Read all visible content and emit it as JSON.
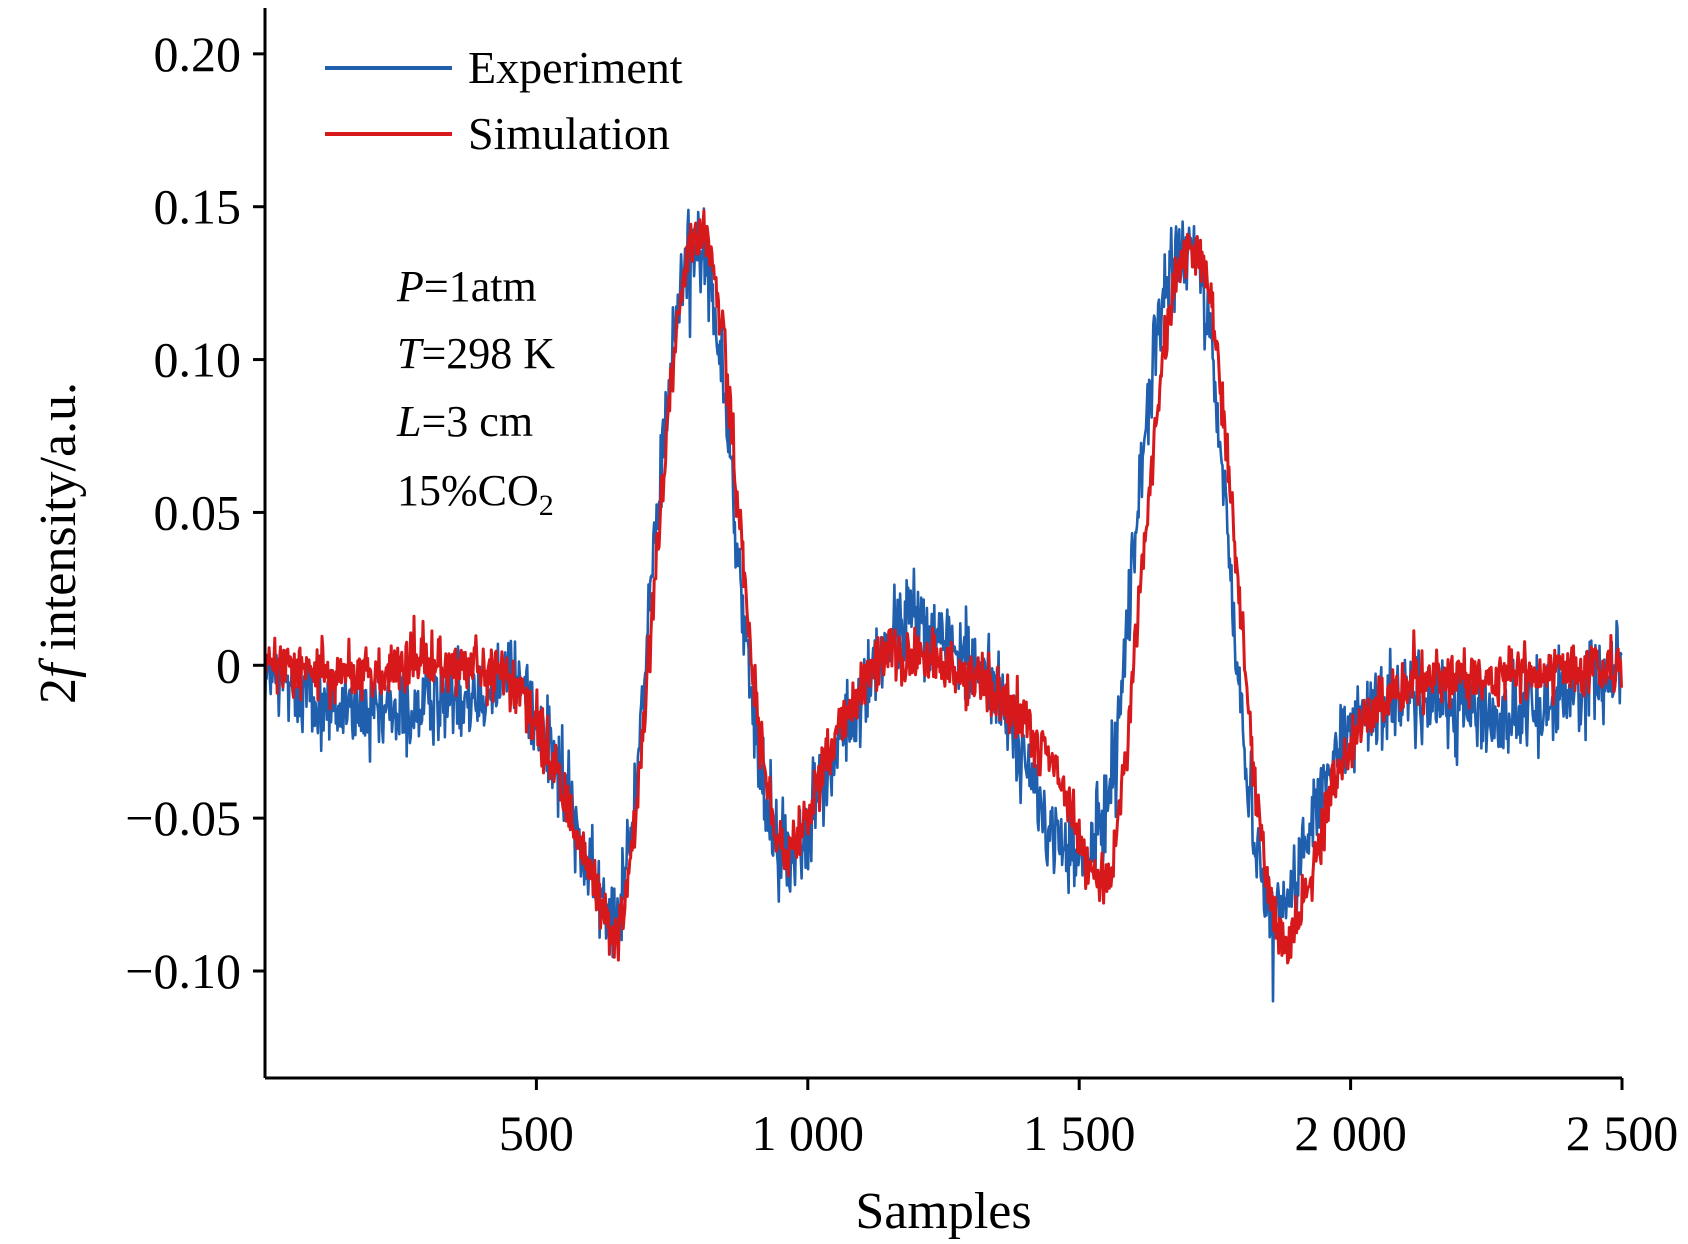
{
  "chart_data": {
    "type": "line",
    "xlabel": "Samples",
    "ylabel_prefix": "2",
    "ylabel_italic": "f",
    "ylabel_rest": " intensity/a.u.",
    "xlim": [
      0,
      2500
    ],
    "ylim": [
      -0.135,
      0.215
    ],
    "xticks": [
      {
        "value": 500,
        "label": "500"
      },
      {
        "value": 1000,
        "label": "1 000"
      },
      {
        "value": 1500,
        "label": "1 500"
      },
      {
        "value": 2000,
        "label": "2 000"
      },
      {
        "value": 2500,
        "label": "2 500"
      }
    ],
    "yticks": [
      {
        "value": 0.2,
        "label": "0.20"
      },
      {
        "value": 0.15,
        "label": "0.15"
      },
      {
        "value": 0.1,
        "label": "0.10"
      },
      {
        "value": 0.05,
        "label": "0.05"
      },
      {
        "value": 0,
        "label": "0"
      },
      {
        "value": -0.05,
        "label": "−0.05"
      },
      {
        "value": -0.1,
        "label": "−0.10"
      }
    ],
    "legend_position": "top-left",
    "annotations": [
      {
        "italic": "P",
        "rest": "=1atm"
      },
      {
        "italic": "T",
        "rest": "=298 K"
      },
      {
        "italic": "L",
        "rest": "=3 cm"
      },
      {
        "italic": "",
        "rest": "15%CO",
        "sub": "2"
      }
    ],
    "series": [
      {
        "name": "Experiment",
        "color": "#1f5fad",
        "noise": 0.011,
        "x": [
          0,
          50,
          100,
          150,
          200,
          250,
          300,
          350,
          400,
          450,
          480,
          500,
          530,
          560,
          580,
          600,
          620,
          640,
          650,
          660,
          680,
          700,
          720,
          740,
          760,
          780,
          790,
          800,
          820,
          840,
          860,
          880,
          900,
          920,
          940,
          960,
          975,
          990,
          1010,
          1040,
          1070,
          1100,
          1130,
          1160,
          1190,
          1220,
          1250,
          1280,
          1310,
          1340,
          1370,
          1400,
          1430,
          1460,
          1490,
          1510,
          1530,
          1545,
          1560,
          1580,
          1600,
          1620,
          1640,
          1660,
          1680,
          1700,
          1720,
          1740,
          1760,
          1780,
          1800,
          1820,
          1840,
          1860,
          1870,
          1880,
          1890,
          1910,
          1940,
          1970,
          2000,
          2030,
          2060,
          2100,
          2150,
          2200,
          2250,
          2300,
          2350,
          2400,
          2450,
          2500
        ],
        "y": [
          -0.003,
          -0.007,
          -0.012,
          -0.014,
          -0.018,
          -0.016,
          -0.012,
          -0.01,
          -0.007,
          -0.003,
          -0.008,
          -0.016,
          -0.03,
          -0.045,
          -0.056,
          -0.07,
          -0.078,
          -0.082,
          -0.08,
          -0.072,
          -0.044,
          -0.002,
          0.042,
          0.083,
          0.118,
          0.138,
          0.14,
          0.137,
          0.125,
          0.1,
          0.06,
          0.018,
          -0.018,
          -0.042,
          -0.057,
          -0.063,
          -0.062,
          -0.056,
          -0.045,
          -0.034,
          -0.022,
          -0.01,
          0.001,
          0.01,
          0.016,
          0.014,
          0.009,
          0.004,
          0.0,
          -0.006,
          -0.018,
          -0.032,
          -0.048,
          -0.058,
          -0.063,
          -0.064,
          -0.058,
          -0.05,
          -0.035,
          -0.005,
          0.037,
          0.075,
          0.105,
          0.123,
          0.133,
          0.136,
          0.13,
          0.108,
          0.072,
          0.028,
          -0.018,
          -0.052,
          -0.072,
          -0.08,
          -0.081,
          -0.079,
          -0.074,
          -0.063,
          -0.046,
          -0.032,
          -0.022,
          -0.015,
          -0.011,
          -0.01,
          -0.011,
          -0.013,
          -0.016,
          -0.017,
          -0.013,
          -0.008,
          -0.004,
          0.0
        ]
      },
      {
        "name": "Simulation",
        "color": "#d7191c",
        "noise": 0.007,
        "x": [
          0,
          100,
          200,
          300,
          400,
          440,
          480,
          510,
          540,
          570,
          600,
          620,
          640,
          650,
          660,
          680,
          700,
          720,
          740,
          760,
          780,
          800,
          820,
          840,
          860,
          880,
          900,
          920,
          940,
          960,
          980,
          1000,
          1030,
          1060,
          1090,
          1130,
          1170,
          1210,
          1250,
          1290,
          1330,
          1370,
          1410,
          1450,
          1480,
          1510,
          1530,
          1550,
          1560,
          1580,
          1600,
          1620,
          1640,
          1660,
          1680,
          1700,
          1720,
          1740,
          1760,
          1780,
          1800,
          1820,
          1840,
          1860,
          1880,
          1890,
          1910,
          1940,
          1970,
          2000,
          2040,
          2080,
          2120,
          2160,
          2200,
          2250,
          2300,
          2350,
          2400,
          2450,
          2500
        ],
        "y": [
          0.0,
          -0.002,
          -0.003,
          0.001,
          -0.002,
          -0.004,
          -0.012,
          -0.024,
          -0.038,
          -0.052,
          -0.068,
          -0.078,
          -0.087,
          -0.089,
          -0.082,
          -0.056,
          -0.016,
          0.03,
          0.075,
          0.112,
          0.135,
          0.142,
          0.135,
          0.113,
          0.078,
          0.035,
          -0.006,
          -0.036,
          -0.056,
          -0.064,
          -0.06,
          -0.048,
          -0.033,
          -0.02,
          -0.008,
          0.0,
          0.004,
          0.003,
          0.001,
          -0.003,
          -0.007,
          -0.012,
          -0.02,
          -0.032,
          -0.045,
          -0.062,
          -0.071,
          -0.072,
          -0.066,
          -0.04,
          -0.002,
          0.04,
          0.078,
          0.108,
          0.128,
          0.137,
          0.136,
          0.123,
          0.095,
          0.055,
          0.012,
          -0.03,
          -0.062,
          -0.083,
          -0.091,
          -0.09,
          -0.08,
          -0.06,
          -0.04,
          -0.025,
          -0.014,
          -0.009,
          -0.006,
          -0.005,
          -0.004,
          -0.004,
          -0.003,
          -0.003,
          -0.002,
          -0.001,
          0.0
        ]
      }
    ]
  }
}
